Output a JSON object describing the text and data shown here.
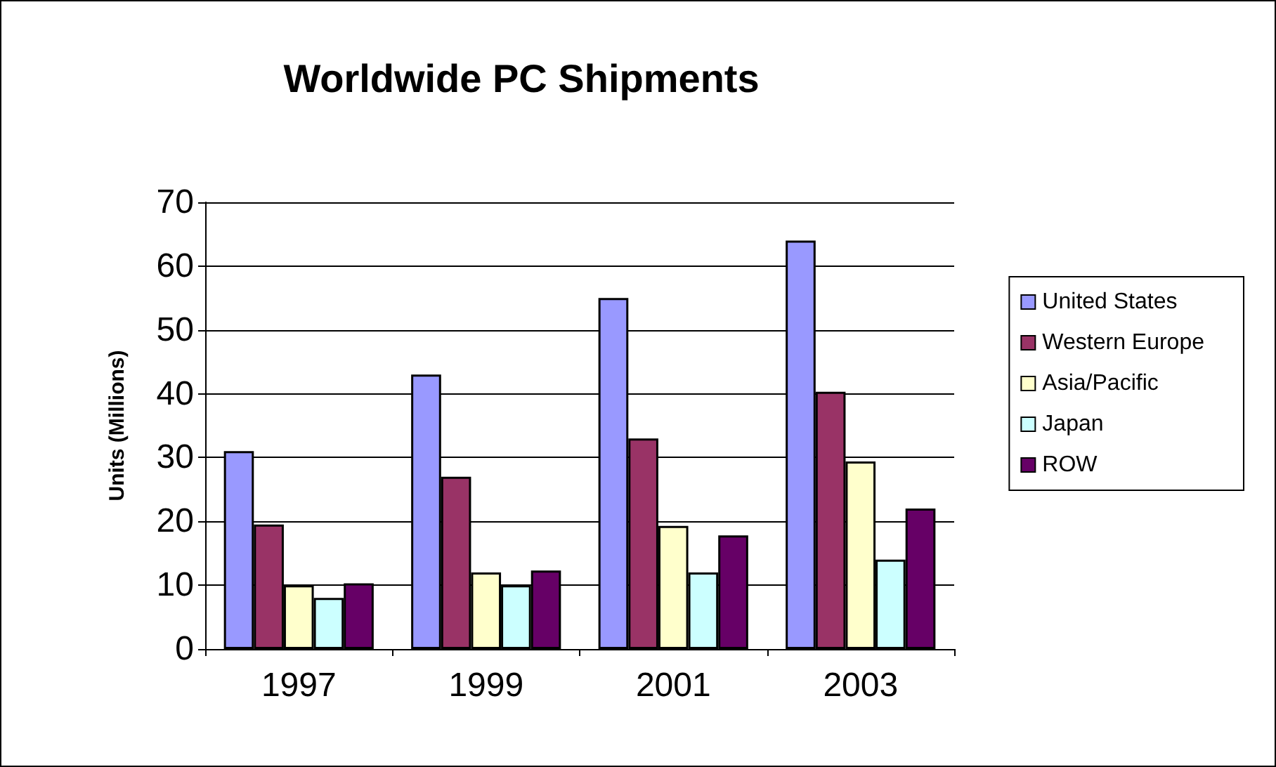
{
  "chart_data": {
    "type": "bar",
    "title": "Worldwide PC Shipments",
    "ylabel": "Units (Millions)",
    "categories": [
      "1997",
      "1999",
      "2001",
      "2003"
    ],
    "series": [
      {
        "name": "United States",
        "color": "#9999ff",
        "values": [
          31,
          43,
          55,
          64
        ]
      },
      {
        "name": "Western Europe",
        "color": "#993366",
        "values": [
          19.5,
          27,
          33,
          40.3
        ]
      },
      {
        "name": "Asia/Pacific",
        "color": "#ffffcc",
        "values": [
          10,
          12,
          19.3,
          29.4
        ]
      },
      {
        "name": "Japan",
        "color": "#ccffff",
        "values": [
          8,
          10,
          12,
          14
        ]
      },
      {
        "name": "ROW",
        "color": "#660066",
        "values": [
          10.3,
          12.3,
          17.8,
          22
        ]
      }
    ],
    "ylim": [
      0,
      70
    ],
    "yticks": [
      0,
      10,
      20,
      30,
      40,
      50,
      60,
      70
    ],
    "grid": "y",
    "legend": "right"
  }
}
